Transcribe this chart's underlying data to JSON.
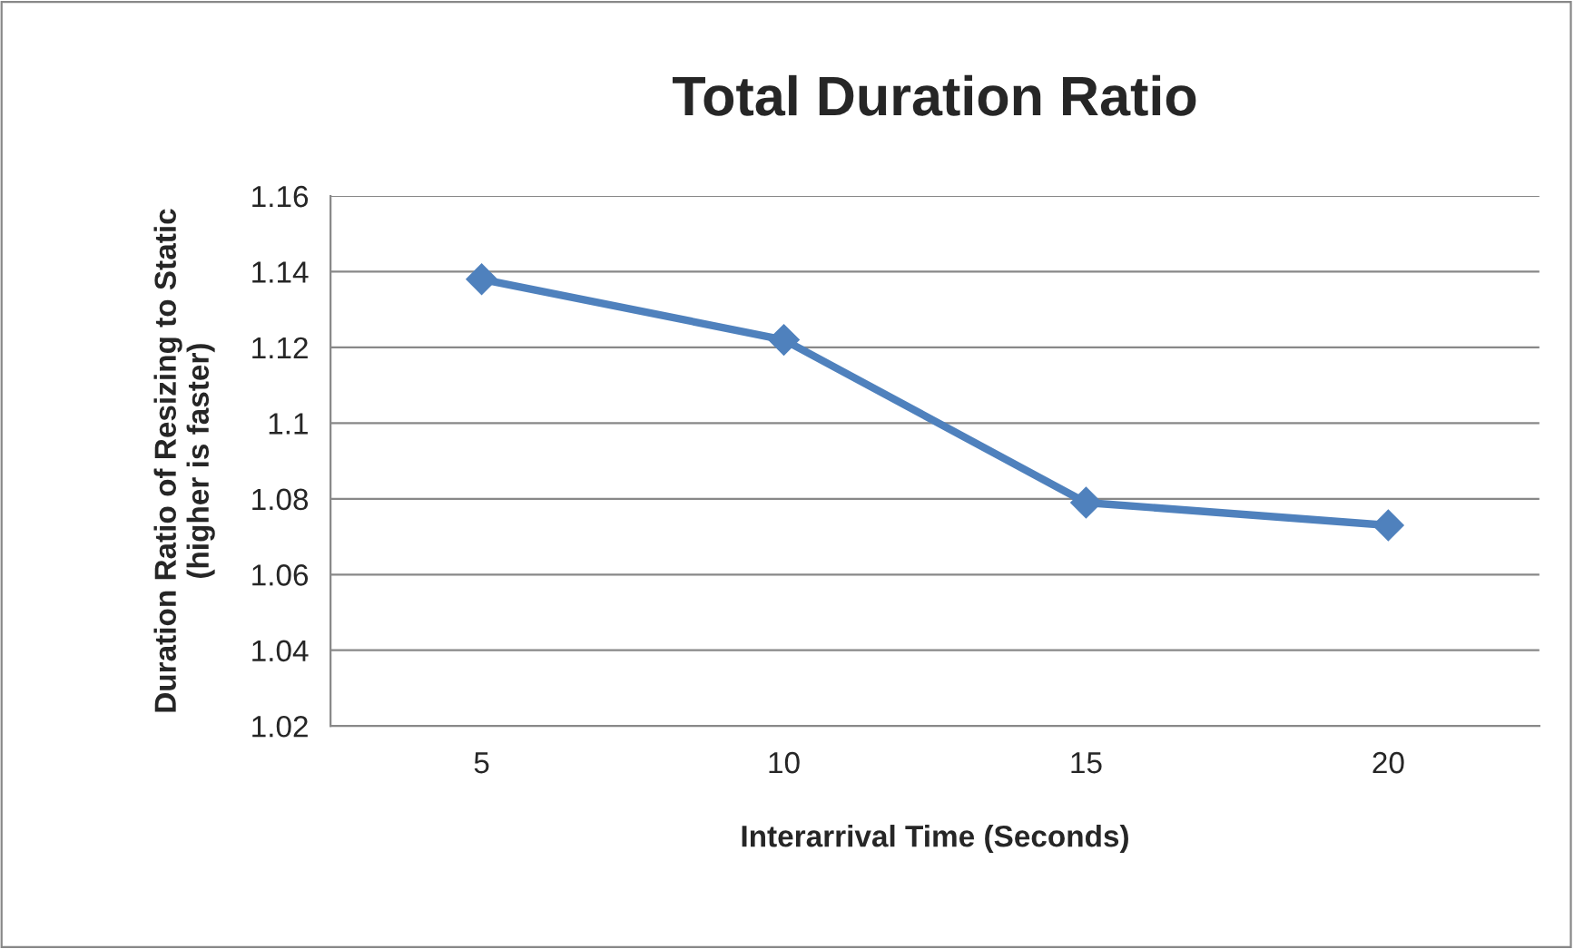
{
  "chart_data": {
    "type": "line",
    "title": "Total Duration Ratio",
    "xlabel": "Interarrival Time (Seconds)",
    "ylabel": "Duration Ratio of Resizing to Static\n(higher is faster)",
    "categories": [
      "5",
      "10",
      "15",
      "20"
    ],
    "series": [
      {
        "color": "#4f81bd",
        "values": [
          1.138,
          1.122,
          1.079,
          1.073
        ]
      }
    ],
    "ylim": [
      1.02,
      1.16
    ],
    "yticks": [
      1.02,
      1.04,
      1.06,
      1.08,
      1.1,
      1.12,
      1.14,
      1.16
    ],
    "grid": "y",
    "marker": "diamond",
    "line_style": "solid"
  }
}
